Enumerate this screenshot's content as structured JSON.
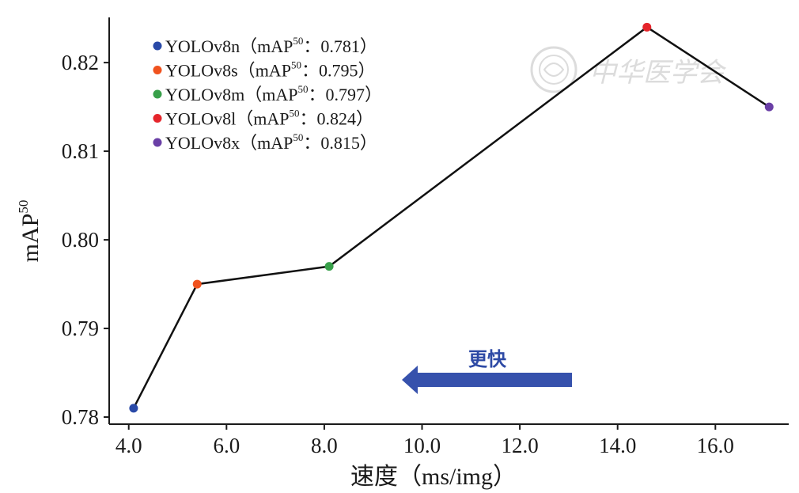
{
  "chart_data": {
    "type": "line",
    "x": [
      4.1,
      5.4,
      8.1,
      14.6,
      17.1
    ],
    "values": [
      0.781,
      0.795,
      0.797,
      0.824,
      0.815
    ],
    "point_colors": [
      "#2a4aa8",
      "#f0521e",
      "#38a04a",
      "#e5252b",
      "#6a3fa6"
    ],
    "line_color": "#111111",
    "xlabel": "速度（ms/img）",
    "ylabel": {
      "base": "mAP",
      "sup": "50"
    },
    "xlim": [
      3.6,
      17.5
    ],
    "ylim": [
      0.7792,
      0.8251
    ],
    "xticks": [
      "4.0",
      "6.0",
      "8.0",
      "10.0",
      "12.0",
      "14.0",
      "16.0"
    ],
    "yticks": [
      "0.78",
      "0.79",
      "0.80",
      "0.81",
      "0.82"
    ],
    "legend_position": "top-left",
    "legend": [
      {
        "model": "YOLOv8n",
        "metric": "mAP",
        "sup": "50",
        "value": "0.781",
        "color": "#2a4aa8"
      },
      {
        "model": "YOLOv8s",
        "metric": "mAP",
        "sup": "50",
        "value": "0.795",
        "color": "#f0521e"
      },
      {
        "model": "YOLOv8m",
        "metric": "mAP",
        "sup": "50",
        "value": "0.797",
        "color": "#38a04a"
      },
      {
        "model": "YOLOv8l",
        "metric": "mAP",
        "sup": "50",
        "value": "0.824",
        "color": "#e5252b"
      },
      {
        "model": "YOLOv8x",
        "metric": "mAP",
        "sup": "50",
        "value": "0.815",
        "color": "#6a3fa6"
      }
    ],
    "annotation": {
      "text": "更快",
      "color": "#2e4aa5",
      "direction": "left"
    },
    "watermark": {
      "text": "中华医学会",
      "color": "#dcdcdc"
    }
  }
}
